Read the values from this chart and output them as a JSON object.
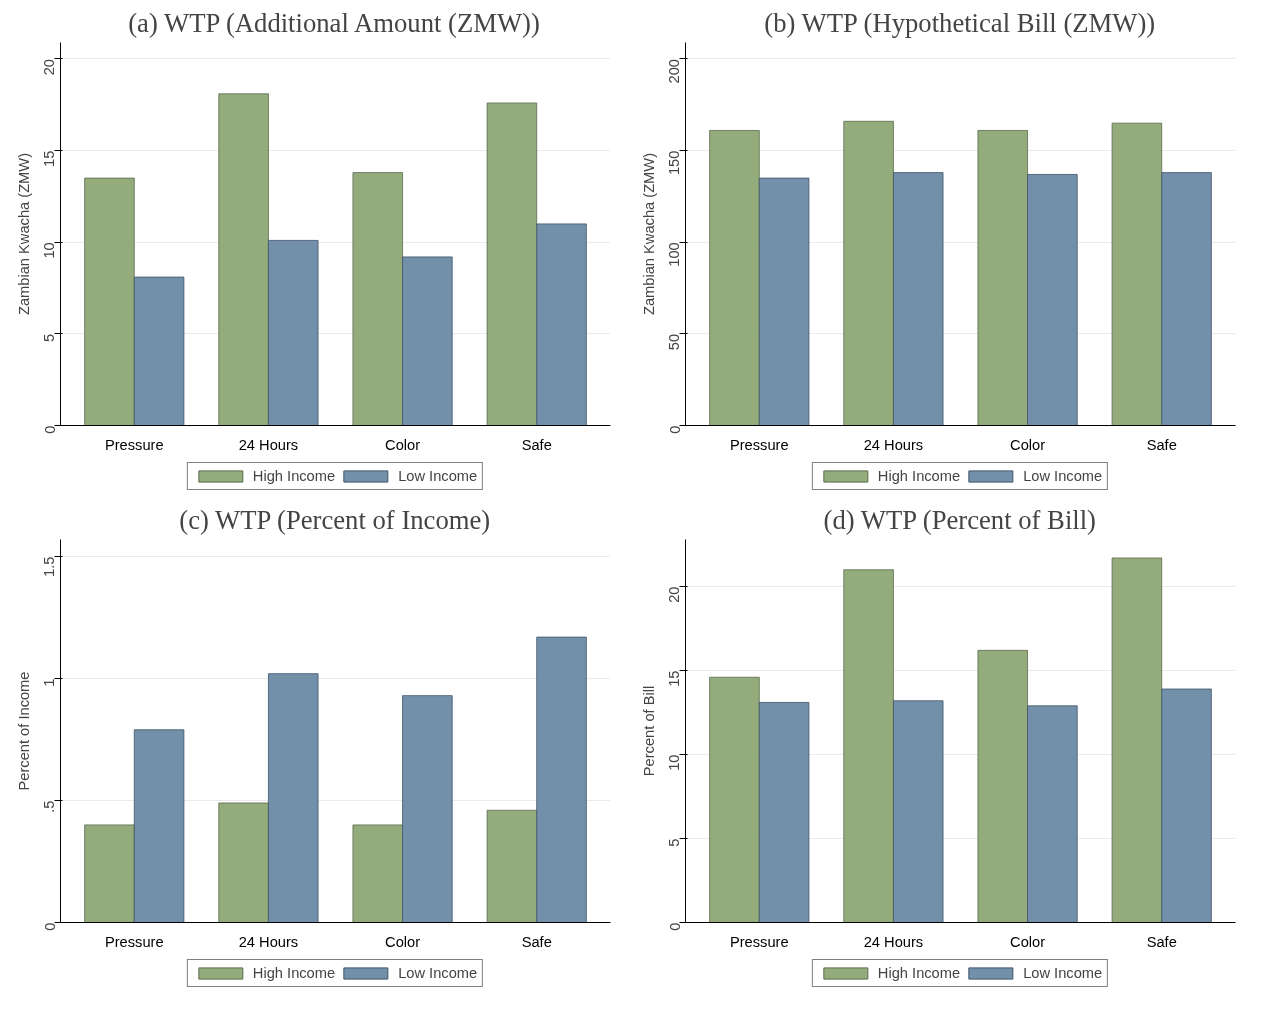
{
  "chart_data": [
    {
      "type": "bar",
      "title": "(a) WTP (Additional Amount (ZMW))",
      "ylabel": "Zambian Kwacha (ZMW)",
      "categories": [
        "Pressure",
        "24 Hours",
        "Color",
        "Safe"
      ],
      "series": [
        {
          "name": "High Income",
          "color": "#94ab7b",
          "values": [
            13.5,
            18.1,
            13.8,
            17.6
          ]
        },
        {
          "name": "Low Income",
          "color": "#7390ab",
          "values": [
            8.1,
            10.1,
            9.2,
            11.0
          ]
        }
      ],
      "ylim": [
        0,
        20.9
      ],
      "yticks": [
        0,
        5,
        10,
        15,
        20
      ],
      "grid": "y",
      "legend": "bottom"
    },
    {
      "type": "bar",
      "title": "(b) WTP (Hypothetical Bill (ZMW))",
      "ylabel": "Zambian Kwacha (ZMW)",
      "categories": [
        "Pressure",
        "24 Hours",
        "Color",
        "Safe"
      ],
      "series": [
        {
          "name": "High Income",
          "color": "#94ab7b",
          "values": [
            161,
            166,
            161,
            165
          ]
        },
        {
          "name": "Low Income",
          "color": "#7390ab",
          "values": [
            135,
            138,
            137,
            138
          ]
        }
      ],
      "ylim": [
        0,
        209
      ],
      "yticks": [
        0,
        50,
        100,
        150,
        200
      ],
      "grid": "y",
      "legend": "bottom"
    },
    {
      "type": "bar",
      "title": "(c) WTP (Percent of Income)",
      "ylabel": "Percent of Income",
      "categories": [
        "Pressure",
        "24 Hours",
        "Color",
        "Safe"
      ],
      "series": [
        {
          "name": "High Income",
          "color": "#94ab7b",
          "values": [
            0.4,
            0.49,
            0.4,
            0.46
          ]
        },
        {
          "name": "Low Income",
          "color": "#7390ab",
          "values": [
            0.79,
            1.02,
            0.93,
            1.17
          ]
        }
      ],
      "ylim": [
        0,
        1.57
      ],
      "yticks": [
        0,
        {
          "value": 0.5,
          "label": ".5"
        },
        1,
        1.5
      ],
      "grid": "y",
      "legend": "bottom"
    },
    {
      "type": "bar",
      "title": "(d) WTP (Percent of Bill)",
      "ylabel": "Percent of Bill",
      "categories": [
        "Pressure",
        "24 Hours",
        "Color",
        "Safe"
      ],
      "series": [
        {
          "name": "High Income",
          "color": "#94ab7b",
          "values": [
            14.6,
            21.0,
            16.2,
            21.7
          ]
        },
        {
          "name": "Low Income",
          "color": "#7390ab",
          "values": [
            13.1,
            13.2,
            12.9,
            13.9
          ]
        }
      ],
      "ylim": [
        0,
        22.8
      ],
      "yticks": [
        0,
        5,
        10,
        15,
        20
      ],
      "grid": "y",
      "legend": "bottom"
    }
  ]
}
